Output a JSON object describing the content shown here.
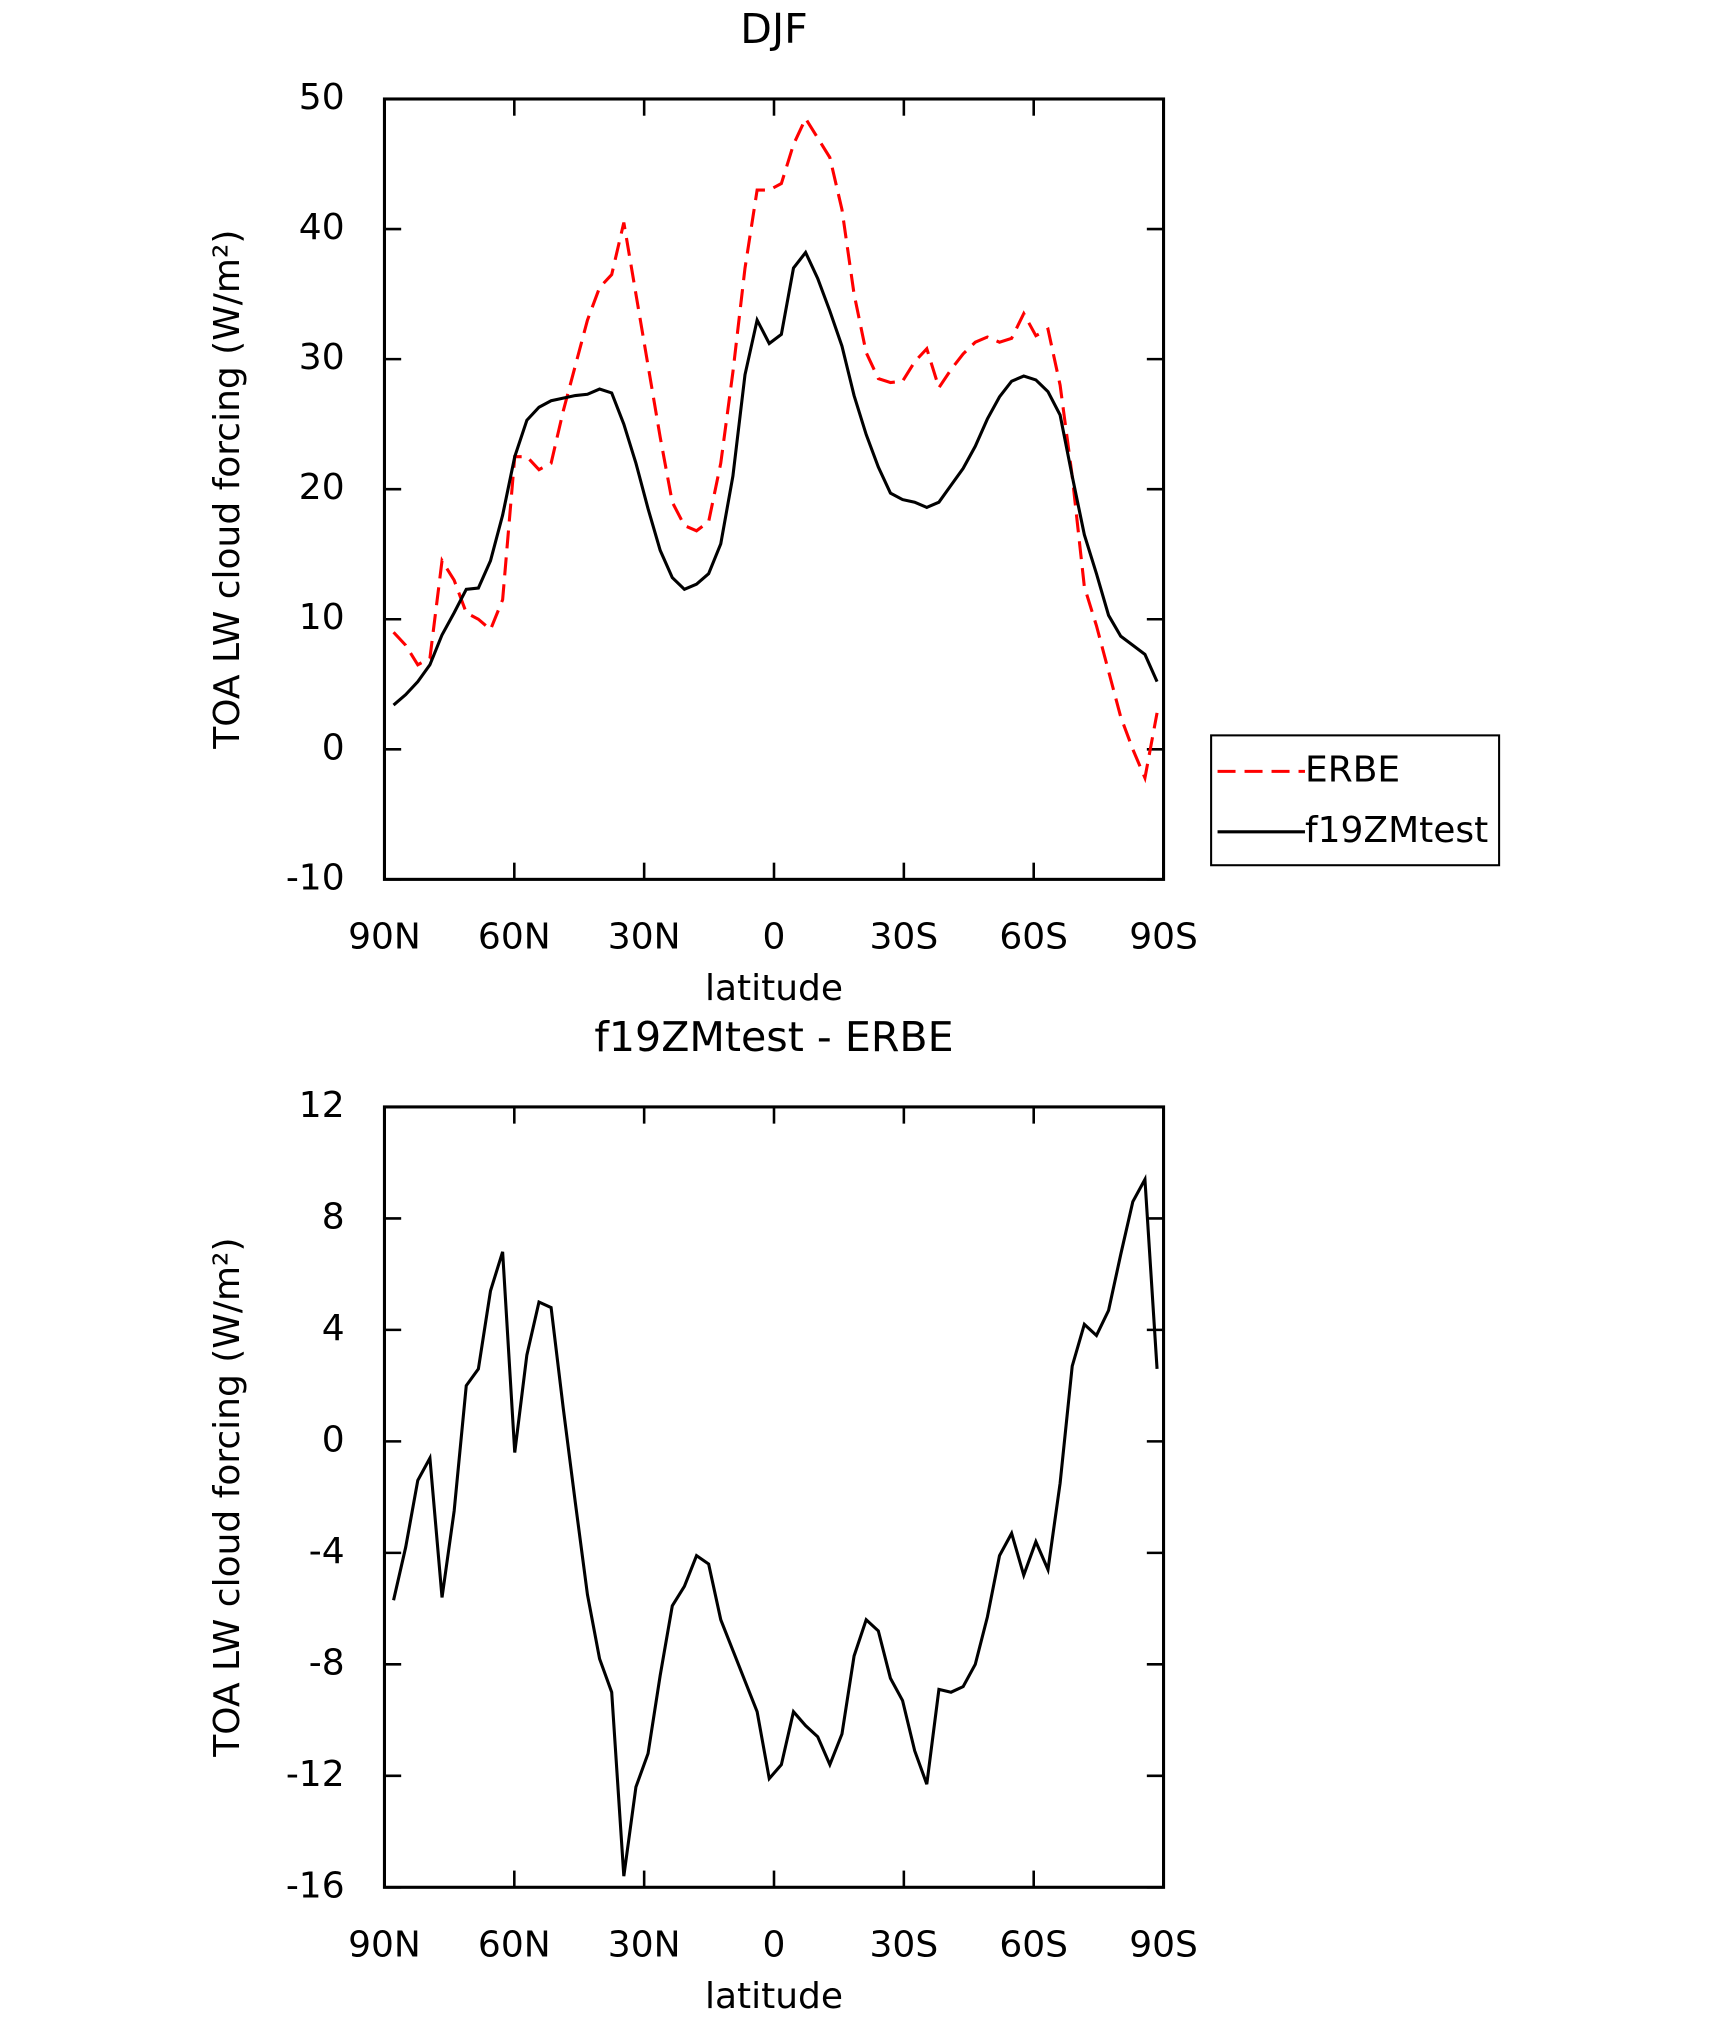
{
  "chart_data": [
    {
      "type": "line",
      "title": "DJF",
      "xlabel": "latitude",
      "ylabel": "TOA LW cloud forcing (W/m²)",
      "x": [
        87.9,
        85.1,
        82.3,
        79.5,
        76.7,
        73.9,
        71.1,
        68.3,
        65.5,
        62.7,
        59.9,
        57.1,
        54.3,
        51.5,
        48.7,
        45.9,
        43.1,
        40.3,
        37.5,
        34.7,
        31.9,
        29.1,
        26.3,
        23.5,
        20.7,
        17.9,
        15.1,
        12.3,
        9.5,
        6.7,
        3.9,
        1.1,
        -1.7,
        -4.5,
        -7.3,
        -10.1,
        -12.9,
        -15.7,
        -18.5,
        -21.3,
        -24.1,
        -26.9,
        -29.7,
        -32.5,
        -35.3,
        -38.1,
        -40.9,
        -43.7,
        -46.5,
        -49.3,
        -52.1,
        -54.9,
        -57.7,
        -60.5,
        -63.3,
        -66.1,
        -68.9,
        -71.7,
        -74.5,
        -77.3,
        -80.1,
        -82.9,
        -85.7,
        -88.5
      ],
      "series": [
        {
          "name": "ERBE",
          "color": "#ff0000",
          "line_style": "dashed",
          "values": [
            9,
            8,
            6.5,
            7,
            14.5,
            13,
            10.5,
            10,
            9.2,
            11.5,
            22.5,
            22.5,
            21.5,
            22,
            26,
            29.5,
            33,
            35.5,
            36.5,
            40.5,
            35,
            29.5,
            24,
            19,
            17.2,
            16.8,
            17.5,
            22,
            29,
            37,
            43,
            43,
            43.5,
            46.5,
            48.5,
            47,
            45.5,
            41.5,
            35,
            30.5,
            28.5,
            28.2,
            28.3,
            29.8,
            30.8,
            27.8,
            29.2,
            30.4,
            31.3,
            31.7,
            31.3,
            31.6,
            33.5,
            31.8,
            32.3,
            28,
            21,
            12.5,
            9.5,
            6,
            2.5,
            0,
            -2.2,
            2.8
          ]
        },
        {
          "name": "f19ZMtest",
          "color": "#000000",
          "line_style": "solid",
          "values": [
            3.4,
            4.2,
            5.2,
            6.5,
            8.8,
            10.5,
            12.3,
            12.4,
            14.5,
            18,
            22.5,
            25.3,
            26.3,
            26.8,
            27,
            27.2,
            27.3,
            27.7,
            27.4,
            25,
            22,
            18.5,
            15.3,
            13.2,
            12.3,
            12.7,
            13.5,
            15.8,
            21,
            28.8,
            33,
            31.2,
            31.9,
            37,
            38.2,
            36.2,
            33.7,
            31,
            27.2,
            24.2,
            21.7,
            19.7,
            19.2,
            19,
            18.6,
            19,
            20.3,
            21.6,
            23.3,
            25.4,
            27.1,
            28.3,
            28.7,
            28.4,
            27.5,
            25.7,
            21,
            16.5,
            13.5,
            10.3,
            8.7,
            8,
            7.3,
            5.2
          ]
        }
      ],
      "xlim": [
        90,
        -90
      ],
      "xticks": [
        {
          "value": 90,
          "label": "90N"
        },
        {
          "value": 60,
          "label": "60N"
        },
        {
          "value": 30,
          "label": "30N"
        },
        0,
        {
          "value": -30,
          "label": "30S"
        },
        {
          "value": -60,
          "label": "60S"
        },
        {
          "value": -90,
          "label": "90S"
        }
      ],
      "ylim": [
        -10,
        50
      ],
      "yticks": [
        -10,
        0,
        10,
        20,
        30,
        40,
        50
      ],
      "legend": "right"
    },
    {
      "type": "line",
      "title": "f19ZMtest - ERBE",
      "xlabel": "latitude",
      "ylabel": "TOA LW cloud forcing (W/m²)",
      "x": [
        87.9,
        85.1,
        82.3,
        79.5,
        76.7,
        73.9,
        71.1,
        68.3,
        65.5,
        62.7,
        59.9,
        57.1,
        54.3,
        51.5,
        48.7,
        45.9,
        43.1,
        40.3,
        37.5,
        34.7,
        31.9,
        29.1,
        26.3,
        23.5,
        20.7,
        17.9,
        15.1,
        12.3,
        9.5,
        6.7,
        3.9,
        1.1,
        -1.7,
        -4.5,
        -7.3,
        -10.1,
        -12.9,
        -15.7,
        -18.5,
        -21.3,
        -24.1,
        -26.9,
        -29.7,
        -32.5,
        -35.3,
        -38.1,
        -40.9,
        -43.7,
        -46.5,
        -49.3,
        -52.1,
        -54.9,
        -57.7,
        -60.5,
        -63.3,
        -66.1,
        -68.9,
        -71.7,
        -74.5,
        -77.3,
        -80.1,
        -82.9,
        -85.7,
        -88.5
      ],
      "series": [
        {
          "color": "#000000",
          "line_style": "solid",
          "values": [
            -5.7,
            -3.8,
            -1.4,
            -0.6,
            -5.6,
            -2.5,
            2,
            2.6,
            5.4,
            6.8,
            -0.4,
            3.1,
            5,
            4.8,
            1.2,
            -2.2,
            -5.5,
            -7.8,
            -9,
            -15.6,
            -12.4,
            -11.2,
            -8.4,
            -5.9,
            -5.2,
            -4.1,
            -4.4,
            -6.4,
            -7.5,
            -8.6,
            -9.7,
            -12.1,
            -11.6,
            -9.7,
            -10.2,
            -10.6,
            -11.6,
            -10.5,
            -7.7,
            -6.4,
            -6.8,
            -8.5,
            -9.3,
            -11.1,
            -12.3,
            -8.9,
            -9,
            -8.8,
            -8,
            -6.3,
            -4.1,
            -3.3,
            -4.8,
            -3.6,
            -4.6,
            -1.5,
            2.7,
            4.2,
            3.8,
            4.7,
            6.7,
            8.6,
            9.4,
            2.6
          ]
        }
      ],
      "xlim": [
        90,
        -90
      ],
      "xticks": [
        {
          "value": 90,
          "label": "90N"
        },
        {
          "value": 60,
          "label": "60N"
        },
        {
          "value": 30,
          "label": "30N"
        },
        0,
        {
          "value": -30,
          "label": "30S"
        },
        {
          "value": -60,
          "label": "60S"
        },
        {
          "value": -90,
          "label": "90S"
        }
      ],
      "ylim": [
        -16,
        12
      ],
      "yticks": [
        -16,
        -12,
        -8,
        -4,
        0,
        4,
        8,
        12
      ]
    }
  ]
}
